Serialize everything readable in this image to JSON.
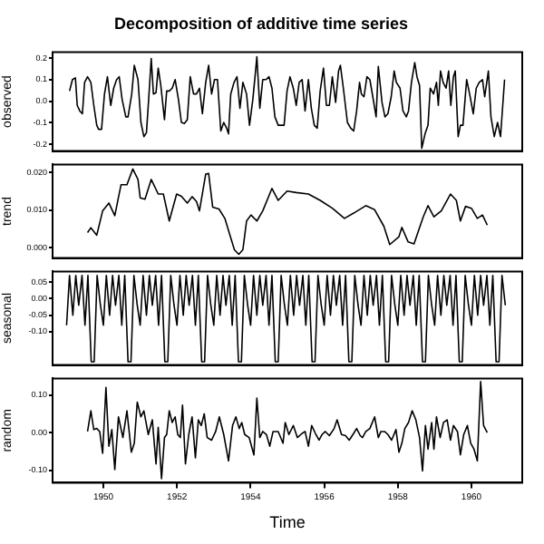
{
  "chart_data": [
    {
      "type": "line",
      "title": "Decomposition of additive time series",
      "ylabel": "observed",
      "color": "#000000",
      "grid": false,
      "tick_labels": "y",
      "xlim": [
        1948.62,
        1961.38
      ],
      "xticks": [
        1950,
        1952,
        1954,
        1956,
        1958,
        1960
      ],
      "ylim": [
        -0.231,
        0.228
      ],
      "yticks": [
        -0.2,
        -0.1,
        {
          "value": 0,
          "label": "0.0"
        },
        0.1,
        0.2
      ],
      "x": [
        1949.08,
        1949.16,
        1949.24,
        1949.29,
        1949.36,
        1949.43,
        1949.49,
        1949.57,
        1949.66,
        1949.74,
        1949.82,
        1949.87,
        1949.95,
        1950.03,
        1950.11,
        1950.2,
        1950.28,
        1950.36,
        1950.43,
        1950.51,
        1950.61,
        1950.67,
        1950.77,
        1950.84,
        1950.94,
        1951.02,
        1951.1,
        1951.17,
        1951.23,
        1951.3,
        1951.36,
        1951.43,
        1951.49,
        1951.56,
        1951.66,
        1951.72,
        1951.79,
        1951.87,
        1951.95,
        1952.04,
        1952.12,
        1952.2,
        1952.28,
        1952.36,
        1952.45,
        1952.53,
        1952.61,
        1952.69,
        1952.78,
        1952.86,
        1952.94,
        1953.02,
        1953.1,
        1953.19,
        1953.27,
        1953.35,
        1953.4,
        1953.46,
        1953.55,
        1953.63,
        1953.71,
        1953.79,
        1953.89,
        1953.97,
        1954.06,
        1954.12,
        1954.17,
        1954.25,
        1954.33,
        1954.42,
        1954.5,
        1954.58,
        1954.66,
        1954.75,
        1954.83,
        1954.91,
        1954.99,
        1955.07,
        1955.16,
        1955.24,
        1955.32,
        1955.4,
        1955.48,
        1955.57,
        1955.65,
        1955.73,
        1955.81,
        1955.89,
        1955.98,
        1956.06,
        1956.14,
        1956.22,
        1956.31,
        1956.39,
        1956.44,
        1956.52,
        1956.63,
        1956.72,
        1956.8,
        1956.88,
        1956.96,
        1957.01,
        1957.08,
        1957.16,
        1957.24,
        1957.32,
        1957.41,
        1957.47,
        1957.57,
        1957.65,
        1957.73,
        1957.82,
        1957.9,
        1957.96,
        1958.06,
        1958.14,
        1958.23,
        1958.29,
        1958.37,
        1958.46,
        1958.52,
        1958.59,
        1958.65,
        1958.74,
        1958.82,
        1958.88,
        1958.97,
        1959.05,
        1959.1,
        1959.16,
        1959.23,
        1959.31,
        1959.38,
        1959.44,
        1959.51,
        1959.56,
        1959.64,
        1959.7,
        1959.77,
        1959.87,
        1959.95,
        1960.05,
        1960.13,
        1960.21,
        1960.3,
        1960.36,
        1960.46,
        1960.53,
        1960.62,
        1960.71,
        1960.79,
        1960.9
      ],
      "values": [
        0.048,
        0.101,
        0.109,
        -0.019,
        -0.045,
        -0.058,
        0.088,
        0.114,
        0.088,
        -0.019,
        -0.111,
        -0.13,
        -0.13,
        0.034,
        0.114,
        -0.019,
        0.061,
        0.101,
        0.114,
        0.008,
        -0.072,
        -0.072,
        0.034,
        0.167,
        0.101,
        -0.098,
        -0.164,
        -0.146,
        0.008,
        0.199,
        0.034,
        0.04,
        0.154,
        0.074,
        -0.085,
        0.048,
        0.048,
        0.061,
        0.101,
        0.008,
        -0.098,
        -0.103,
        -0.085,
        0.114,
        0.034,
        0.034,
        0.061,
        -0.058,
        0.088,
        0.167,
        0.034,
        0.101,
        0.101,
        -0.138,
        -0.098,
        -0.125,
        -0.151,
        0.034,
        0.088,
        0.114,
        -0.032,
        0.088,
        0.034,
        -0.111,
        0.008,
        0.114,
        0.207,
        -0.032,
        0.101,
        0.101,
        0.114,
        0.061,
        -0.072,
        -0.111,
        -0.111,
        -0.111,
        0.048,
        0.114,
        0.061,
        -0.019,
        0.088,
        0.101,
        -0.045,
        0.101,
        -0.032,
        -0.111,
        -0.125,
        0.048,
        0.154,
        -0.019,
        -0.019,
        0.114,
        -0.005,
        0.141,
        0.167,
        0.061,
        -0.098,
        -0.125,
        -0.138,
        -0.045,
        0.088,
        0.034,
        0.021,
        0.114,
        0.101,
        0.021,
        -0.072,
        0.162,
        -0.005,
        -0.072,
        -0.058,
        0.021,
        0.141,
        0.088,
        0.061,
        -0.045,
        -0.072,
        -0.045,
        0.088,
        0.18,
        0.114,
        0.074,
        -0.218,
        -0.151,
        -0.111,
        0.061,
        0.034,
        0.088,
        -0.019,
        0.141,
        0.088,
        0.061,
        0.141,
        -0.019,
        0.114,
        0.141,
        -0.164,
        -0.111,
        -0.111,
        0.101,
        0.034,
        -0.058,
        0.061,
        0.088,
        0.101,
        0.021,
        0.141,
        -0.072,
        -0.164,
        -0.098,
        -0.164,
        0.101
      ]
    },
    {
      "type": "line",
      "ylabel": "trend",
      "color": "#000000",
      "grid": false,
      "tick_labels": "y",
      "xlim": [
        1948.62,
        1961.38
      ],
      "xticks": [
        1950,
        1952,
        1954,
        1956,
        1958,
        1960
      ],
      "ylim": [
        -0.0028,
        0.0222
      ],
      "yticks": [
        {
          "value": 0,
          "label": "0.000"
        },
        {
          "value": 0.01,
          "label": "0.010"
        },
        {
          "value": 0.02,
          "label": "0.020"
        }
      ],
      "x": [
        1949.57,
        1949.66,
        1949.82,
        1949.98,
        1950.15,
        1950.31,
        1950.48,
        1950.64,
        1950.8,
        1950.94,
        1951.0,
        1951.13,
        1951.3,
        1951.49,
        1951.63,
        1951.79,
        1951.99,
        1952.12,
        1952.28,
        1952.41,
        1952.53,
        1952.61,
        1952.78,
        1952.86,
        1952.97,
        1953.14,
        1953.3,
        1953.43,
        1953.56,
        1953.68,
        1953.79,
        1953.89,
        1954.01,
        1954.17,
        1954.33,
        1954.58,
        1954.75,
        1954.99,
        1955.24,
        1955.57,
        1955.89,
        1956.22,
        1956.55,
        1956.8,
        1957.13,
        1957.37,
        1957.62,
        1957.78,
        1958.03,
        1958.11,
        1958.28,
        1958.44,
        1958.69,
        1958.82,
        1958.98,
        1959.18,
        1959.43,
        1959.59,
        1959.7,
        1959.84,
        1960.0,
        1960.16,
        1960.3,
        1960.43
      ],
      "values": [
        0.004,
        0.0053,
        0.0033,
        0.0098,
        0.0119,
        0.0085,
        0.0168,
        0.0168,
        0.021,
        0.0182,
        0.0133,
        0.0129,
        0.0182,
        0.0143,
        0.0143,
        0.0071,
        0.0143,
        0.0137,
        0.0119,
        0.0136,
        0.0123,
        0.0098,
        0.0196,
        0.0198,
        0.0108,
        0.0103,
        0.0078,
        0.0036,
        -0.0006,
        -0.0018,
        -0.0006,
        0.0071,
        0.0087,
        0.0071,
        0.0098,
        0.0158,
        0.0126,
        0.0151,
        0.0147,
        0.0143,
        0.0126,
        0.0105,
        0.0078,
        0.0092,
        0.0112,
        0.0101,
        0.0057,
        0.0008,
        0.0029,
        0.0054,
        0.0015,
        0.001,
        0.0082,
        0.0112,
        0.0082,
        0.0098,
        0.0143,
        0.0126,
        0.0071,
        0.011,
        0.0105,
        0.0078,
        0.0087,
        0.006
      ]
    },
    {
      "type": "line",
      "ylabel": "seasonal",
      "color": "#000000",
      "grid": false,
      "tick_labels": "y",
      "xlim": [
        1948.62,
        1961.38
      ],
      "xticks": [
        1950,
        1952,
        1954,
        1956,
        1958,
        1960
      ],
      "ylim": [
        -0.2,
        0.082
      ],
      "yticks": [
        {
          "value": -0.1,
          "label": "-0.10"
        },
        -0.05,
        {
          "value": 0,
          "label": "0.00"
        },
        0.05
      ],
      "x": [
        1949.0,
        1949.08,
        1949.17,
        1949.25,
        1949.33,
        1949.42,
        1949.5,
        1949.58,
        1949.67,
        1949.75,
        1949.83,
        1949.92,
        1950.0,
        1950.08,
        1950.17,
        1950.25,
        1950.33,
        1950.42,
        1950.5,
        1950.58,
        1950.67,
        1950.75,
        1950.83,
        1950.92,
        1951.0,
        1951.08,
        1951.17,
        1951.25,
        1951.33,
        1951.42,
        1951.5,
        1951.58,
        1951.67,
        1951.75,
        1951.83,
        1951.92,
        1952.0,
        1952.08,
        1952.17,
        1952.25,
        1952.33,
        1952.42,
        1952.5,
        1952.58,
        1952.67,
        1952.75,
        1952.83,
        1952.92,
        1953.0,
        1953.08,
        1953.17,
        1953.25,
        1953.33,
        1953.42,
        1953.5,
        1953.58,
        1953.67,
        1953.75,
        1953.83,
        1953.92,
        1954.0,
        1954.08,
        1954.17,
        1954.25,
        1954.33,
        1954.42,
        1954.5,
        1954.58,
        1954.67,
        1954.75,
        1954.83,
        1954.92,
        1955.0,
        1955.08,
        1955.17,
        1955.25,
        1955.33,
        1955.42,
        1955.5,
        1955.58,
        1955.67,
        1955.75,
        1955.83,
        1955.92,
        1956.0,
        1956.08,
        1956.17,
        1956.25,
        1956.33,
        1956.42,
        1956.5,
        1956.58,
        1956.67,
        1956.75,
        1956.83,
        1956.92,
        1957.0,
        1957.08,
        1957.17,
        1957.25,
        1957.33,
        1957.42,
        1957.5,
        1957.58,
        1957.67,
        1957.75,
        1957.83,
        1957.92,
        1958.0,
        1958.08,
        1958.17,
        1958.25,
        1958.33,
        1958.42,
        1958.5,
        1958.58,
        1958.67,
        1958.75,
        1958.83,
        1958.92,
        1959.0,
        1959.08,
        1959.17,
        1959.25,
        1959.33,
        1959.42,
        1959.5,
        1959.58,
        1959.67,
        1959.75,
        1959.83,
        1959.92,
        1960.0,
        1960.08,
        1960.17,
        1960.25,
        1960.33,
        1960.42,
        1960.5,
        1960.58,
        1960.67,
        1960.75,
        1960.83,
        1960.92
      ],
      "values": [
        -0.08,
        0.07,
        -0.05,
        0.07,
        -0.02,
        0.07,
        -0.08,
        0.07,
        -0.19,
        -0.19,
        0.07,
        -0.02,
        -0.08,
        0.07,
        -0.05,
        0.07,
        -0.02,
        0.07,
        -0.08,
        0.07,
        -0.19,
        -0.19,
        0.07,
        -0.02,
        -0.08,
        0.07,
        -0.05,
        0.07,
        -0.02,
        0.07,
        -0.08,
        0.07,
        -0.19,
        -0.19,
        0.07,
        -0.02,
        -0.08,
        0.07,
        -0.05,
        0.07,
        -0.02,
        0.07,
        -0.08,
        0.07,
        -0.19,
        -0.19,
        0.07,
        -0.02,
        -0.08,
        0.07,
        -0.05,
        0.07,
        -0.02,
        0.07,
        -0.08,
        0.07,
        -0.19,
        -0.19,
        0.07,
        -0.02,
        -0.08,
        0.07,
        -0.05,
        0.07,
        -0.02,
        0.07,
        -0.08,
        0.07,
        -0.19,
        -0.19,
        0.07,
        -0.02,
        -0.08,
        0.07,
        -0.05,
        0.07,
        -0.02,
        0.07,
        -0.08,
        0.07,
        -0.19,
        -0.19,
        0.07,
        -0.02,
        -0.08,
        0.07,
        -0.05,
        0.07,
        -0.02,
        0.07,
        -0.08,
        0.07,
        -0.19,
        -0.19,
        0.07,
        -0.02,
        -0.08,
        0.07,
        -0.05,
        0.07,
        -0.02,
        0.07,
        -0.08,
        0.07,
        -0.19,
        -0.19,
        0.07,
        -0.02,
        -0.08,
        0.07,
        -0.05,
        0.07,
        -0.02,
        0.07,
        -0.08,
        0.07,
        -0.19,
        -0.19,
        0.07,
        -0.02,
        -0.08,
        0.07,
        -0.05,
        0.07,
        -0.02,
        0.07,
        -0.08,
        0.07,
        -0.19,
        -0.19,
        0.07,
        -0.02,
        -0.08,
        0.07,
        -0.05,
        0.07,
        -0.02,
        0.07,
        -0.08,
        0.07,
        -0.19,
        -0.19,
        0.07,
        -0.02
      ]
    },
    {
      "type": "line",
      "ylabel": "random",
      "xlabel": "Time",
      "color": "#000000",
      "grid": false,
      "xlim": [
        1948.62,
        1961.38
      ],
      "xticks": [
        1950,
        1952,
        1954,
        1956,
        1958,
        1960
      ],
      "ylim": [
        -0.133,
        0.144
      ],
      "yticks": [
        {
          "value": -0.1,
          "label": "-0.10"
        },
        {
          "value": 0,
          "label": "0.00"
        },
        {
          "value": 0.1,
          "label": "0.10"
        }
      ],
      "x": [
        1949.57,
        1949.66,
        1949.74,
        1949.82,
        1949.9,
        1949.98,
        1950.07,
        1950.15,
        1950.23,
        1950.31,
        1950.41,
        1950.53,
        1950.64,
        1950.76,
        1950.84,
        1950.92,
        1951.02,
        1951.1,
        1951.22,
        1951.33,
        1951.43,
        1951.49,
        1951.58,
        1951.66,
        1951.72,
        1951.79,
        1951.87,
        1951.95,
        1952.02,
        1952.09,
        1952.15,
        1952.23,
        1952.32,
        1952.41,
        1952.5,
        1952.58,
        1952.66,
        1952.74,
        1952.82,
        1952.94,
        1953.05,
        1953.15,
        1953.27,
        1953.4,
        1953.51,
        1953.6,
        1953.69,
        1953.76,
        1953.84,
        1953.96,
        1954.09,
        1954.17,
        1954.25,
        1954.33,
        1954.43,
        1954.52,
        1954.61,
        1954.75,
        1954.88,
        1954.94,
        1955.04,
        1955.16,
        1955.27,
        1955.4,
        1955.48,
        1955.57,
        1955.66,
        1955.76,
        1955.86,
        1955.94,
        1956.03,
        1956.14,
        1956.27,
        1956.35,
        1956.47,
        1956.58,
        1956.68,
        1956.8,
        1956.88,
        1956.98,
        1957.04,
        1957.13,
        1957.24,
        1957.37,
        1957.47,
        1957.54,
        1957.64,
        1957.73,
        1957.83,
        1957.95,
        1958.03,
        1958.11,
        1958.19,
        1958.29,
        1958.39,
        1958.49,
        1958.59,
        1958.67,
        1958.75,
        1958.82,
        1958.92,
        1958.98,
        1959.05,
        1959.15,
        1959.24,
        1959.34,
        1959.43,
        1959.51,
        1959.62,
        1959.7,
        1959.79,
        1959.89,
        1959.98,
        1960.07,
        1960.16,
        1960.25,
        1960.33,
        1960.43
      ],
      "values": [
        0.003,
        0.058,
        0.008,
        0.011,
        0.003,
        -0.055,
        0.12,
        -0.036,
        0.008,
        -0.098,
        0.042,
        -0.013,
        0.058,
        -0.052,
        -0.028,
        0.081,
        0.042,
        0.058,
        -0.005,
        0.034,
        -0.083,
        0.014,
        -0.122,
        -0.013,
        -0.005,
        0.058,
        0.027,
        0.042,
        -0.005,
        -0.013,
        0.073,
        -0.083,
        -0.005,
        0.042,
        -0.067,
        0.034,
        0.019,
        0.05,
        -0.013,
        -0.02,
        0.003,
        0.042,
        -0.005,
        -0.075,
        0.019,
        0.042,
        0.011,
        0.027,
        -0.005,
        -0.013,
        -0.059,
        0.092,
        -0.013,
        0.003,
        -0.005,
        -0.036,
        0.003,
        0.003,
        -0.028,
        0.027,
        -0.005,
        0.019,
        -0.013,
        -0.002,
        0.003,
        -0.036,
        0.019,
        -0.002,
        -0.02,
        -0.005,
        0.003,
        -0.008,
        0.011,
        0.034,
        -0.005,
        -0.008,
        -0.02,
        -0.002,
        0.011,
        -0.008,
        -0.013,
        0.003,
        0.011,
        0.042,
        -0.013,
        0.003,
        0.003,
        -0.005,
        -0.02,
        0.008,
        -0.052,
        -0.028,
        0.011,
        0.027,
        0.058,
        0.034,
        -0.013,
        -0.102,
        0.019,
        -0.044,
        0.027,
        -0.044,
        0.042,
        -0.013,
        0.027,
        0.034,
        -0.02,
        0.019,
        0.003,
        -0.059,
        -0.005,
        0.019,
        -0.028,
        -0.044,
        -0.075,
        0.136,
        0.019,
        0.0
      ]
    }
  ]
}
